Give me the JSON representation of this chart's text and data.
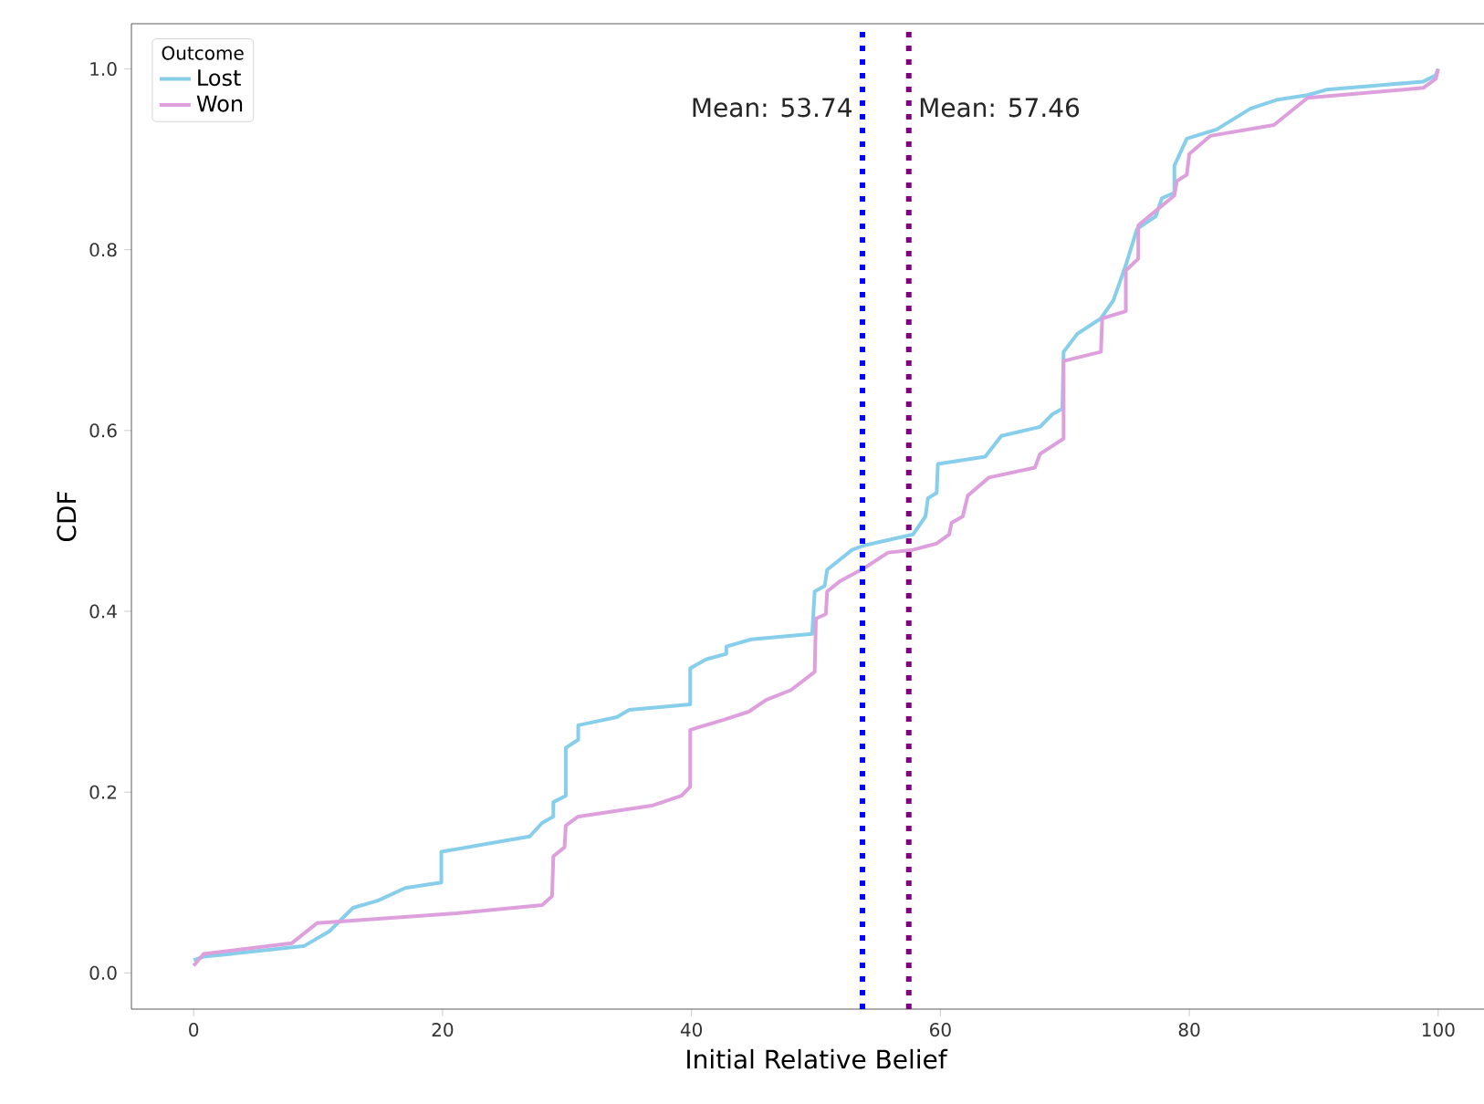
{
  "chart_data": {
    "type": "line",
    "xlabel": "Initial Relative Belief",
    "ylabel": "CDF",
    "legend_title": "Outcome",
    "legend": "top left",
    "grid": false,
    "marker": "none",
    "line_style": "solid",
    "xlim": [
      -5,
      105
    ],
    "ylim": [
      -0.04,
      1.05
    ],
    "xticks": [
      0,
      20,
      40,
      60,
      80,
      100
    ],
    "yticks": [
      {
        "value": 0,
        "label": "0.0"
      },
      {
        "value": 0.2,
        "label": "0.2"
      },
      {
        "value": 0.4,
        "label": "0.4"
      },
      {
        "value": 0.6,
        "label": "0.6"
      },
      {
        "value": 0.8,
        "label": "0.8"
      },
      {
        "value": 1.0,
        "label": "1.0"
      }
    ],
    "series": [
      {
        "name": "Lost",
        "color": "#87ceeb",
        "x": [
          0,
          0.8,
          5.7,
          8.9,
          10.9,
          12.8,
          14.8,
          17.0,
          19.9,
          19.9,
          27.0,
          28.0,
          28.9,
          28.9,
          29.9,
          29.9,
          30.9,
          30.9,
          34.0,
          35.0,
          39.9,
          39.9,
          41.2,
          42.8,
          42.8,
          44.8,
          49.7,
          49.9,
          50.7,
          50.9,
          52.9,
          53.9,
          57.8,
          58.8,
          59.0,
          59.7,
          59.8,
          63.6,
          64.9,
          68.0,
          69.0,
          69.8,
          69.9,
          71.0,
          72.9,
          73.9,
          74.9,
          75.8,
          77.3,
          77.8,
          78.8,
          78.8,
          79.8,
          82.2,
          84.9,
          87.1,
          89.5,
          91.0,
          98.8,
          99.8,
          100
        ],
        "values": [
          0.014,
          0.018,
          0.025,
          0.03,
          0.046,
          0.072,
          0.08,
          0.094,
          0.1,
          0.134,
          0.151,
          0.166,
          0.173,
          0.189,
          0.196,
          0.249,
          0.258,
          0.274,
          0.283,
          0.291,
          0.297,
          0.337,
          0.347,
          0.353,
          0.361,
          0.369,
          0.375,
          0.422,
          0.428,
          0.446,
          0.468,
          0.473,
          0.485,
          0.505,
          0.525,
          0.531,
          0.563,
          0.571,
          0.594,
          0.604,
          0.618,
          0.624,
          0.687,
          0.707,
          0.724,
          0.744,
          0.783,
          0.823,
          0.837,
          0.857,
          0.863,
          0.893,
          0.923,
          0.933,
          0.956,
          0.966,
          0.971,
          0.977,
          0.986,
          0.993,
          1.0
        ]
      },
      {
        "name": "Won",
        "color": "#dda0dd",
        "x": [
          0,
          0.8,
          7.9,
          9.9,
          21.1,
          28.0,
          28.8,
          28.9,
          29.8,
          29.9,
          30.9,
          36.8,
          39.2,
          39.9,
          39.9,
          42.6,
          44.6,
          46.0,
          48.0,
          49.9,
          50.0,
          50.8,
          50.9,
          51.9,
          53.9,
          55.8,
          57.8,
          59.7,
          60.7,
          60.9,
          61.8,
          62.2,
          63.9,
          67.6,
          68.0,
          69.9,
          69.9,
          72.9,
          73.0,
          74.9,
          74.9,
          75.9,
          75.9,
          78.8,
          79.0,
          79.8,
          80.0,
          81.7,
          86.8,
          89.5,
          98.8,
          99.8,
          100
        ],
        "values": [
          0.008,
          0.021,
          0.033,
          0.055,
          0.066,
          0.075,
          0.085,
          0.129,
          0.139,
          0.163,
          0.173,
          0.185,
          0.196,
          0.206,
          0.269,
          0.28,
          0.289,
          0.302,
          0.313,
          0.333,
          0.392,
          0.397,
          0.422,
          0.433,
          0.448,
          0.465,
          0.468,
          0.475,
          0.485,
          0.498,
          0.505,
          0.528,
          0.548,
          0.559,
          0.574,
          0.591,
          0.677,
          0.687,
          0.724,
          0.732,
          0.777,
          0.79,
          0.827,
          0.86,
          0.876,
          0.883,
          0.906,
          0.926,
          0.938,
          0.968,
          0.979,
          0.989,
          1.0
        ]
      }
    ],
    "ref_lines": [
      {
        "axis": "x",
        "value": 53.74,
        "label": "Mean: 53.74",
        "color": "#0000ff",
        "line_style": "dotted"
      },
      {
        "axis": "x",
        "value": 57.46,
        "label": "Mean: 57.46",
        "color": "#800080",
        "line_style": "dotted"
      }
    ]
  }
}
